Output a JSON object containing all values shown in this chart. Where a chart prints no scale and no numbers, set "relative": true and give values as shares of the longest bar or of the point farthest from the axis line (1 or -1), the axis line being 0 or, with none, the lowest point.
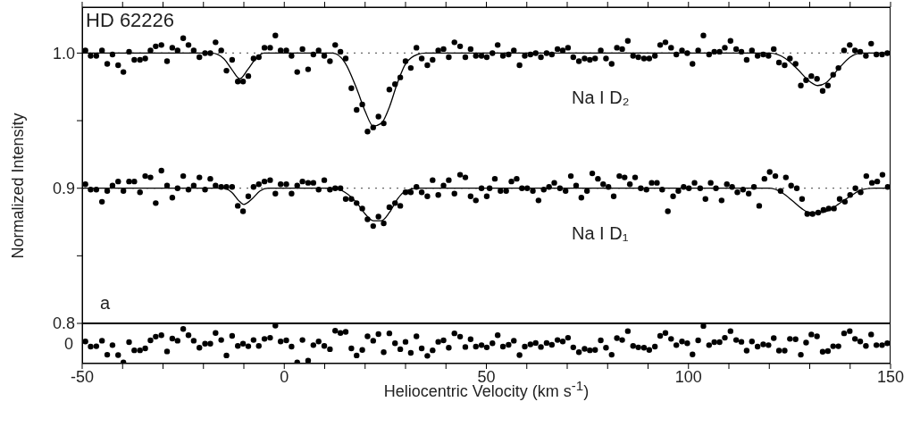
{
  "chart_data": [
    {
      "type": "scatter",
      "ylabel": "Normalized Intensity",
      "annotations": [
        "HD 62226",
        "Na I D₂",
        "Na I D₁",
        "a"
      ],
      "xlim": [
        -50,
        150
      ],
      "xticks": [
        -50,
        {
          "value": -40,
          "label": null
        },
        {
          "value": -30,
          "label": null
        },
        {
          "value": -20,
          "label": null
        },
        {
          "value": -10,
          "label": null
        },
        0,
        {
          "value": 10,
          "label": null
        },
        {
          "value": 20,
          "label": null
        },
        {
          "value": 30,
          "label": null
        },
        {
          "value": 40,
          "label": null
        },
        50,
        {
          "value": 60,
          "label": null
        },
        {
          "value": 70,
          "label": null
        },
        {
          "value": 80,
          "label": null
        },
        {
          "value": 90,
          "label": null
        },
        100,
        {
          "value": 110,
          "label": null
        },
        {
          "value": 120,
          "label": null
        },
        {
          "value": 130,
          "label": null
        },
        {
          "value": 140,
          "label": null
        },
        150
      ],
      "ylim": [
        0.8,
        1.034
      ],
      "yticks": [
        {
          "value": 0.8,
          "label": "0.8"
        },
        {
          "value": 0.85,
          "label": null
        },
        {
          "value": 0.9,
          "label": "0.9"
        },
        {
          "value": 0.95,
          "label": null
        },
        {
          "value": 1,
          "label": "1.0"
        }
      ],
      "tick_labels": "y",
      "ref_lines": [
        {
          "axis": "y",
          "value": 1,
          "line_style": "dotted",
          "color": "#666666"
        },
        {
          "axis": "y",
          "value": 0.9,
          "line_style": "dotted",
          "color": "#666666"
        }
      ],
      "series": [
        {
          "type": "scatter",
          "marker": "circle",
          "color": "#000000",
          "x": [
            -49.2,
            -47.9,
            -46.5,
            -45.1,
            -43.8,
            -42.5,
            -41.1,
            -39.8,
            -38.4,
            -37.1,
            -35.7,
            -34.4,
            -33.1,
            -31.8,
            -30.4,
            -29.0,
            -27.7,
            -26.4,
            -25.0,
            -23.7,
            -22.4,
            -21.0,
            -19.6,
            -18.3,
            -17.0,
            -15.6,
            -14.3,
            -12.9,
            -11.5,
            -10.2,
            -8.9,
            -7.6,
            -6.3,
            -4.9,
            -3.5,
            -2.2,
            -0.9,
            0.5,
            1.8,
            3.2,
            4.5,
            5.9,
            7.2,
            8.5,
            9.9,
            11.3,
            12.6,
            13.9,
            15.2,
            16.6,
            17.9,
            19.3,
            20.6,
            22.0,
            23.3,
            24.6,
            26.0,
            27.4,
            28.7,
            30.0,
            31.3,
            32.7,
            34.0,
            35.4,
            36.7,
            38.1,
            39.4,
            40.7,
            42.1,
            43.5,
            44.8,
            46.1,
            47.4,
            48.8,
            50.1,
            51.5,
            52.8,
            54.1,
            55.5,
            56.8,
            58.2,
            59.5,
            60.9,
            62.2,
            63.5,
            64.9,
            66.2,
            67.6,
            68.9,
            70.2,
            71.5,
            72.9,
            74.3,
            75.6,
            76.9,
            78.3,
            79.6,
            81.0,
            82.3,
            83.6,
            85.0,
            86.3,
            87.6,
            89.0,
            90.3,
            91.7,
            93.0,
            94.3,
            95.7,
            97.0,
            98.4,
            99.7,
            101.0,
            102.4,
            103.7,
            105.1,
            106.4,
            107.7,
            109.0,
            110.4,
            111.8,
            113.1,
            114.4,
            115.7,
            117.1,
            118.5,
            119.8,
            121.1,
            122.4,
            123.8,
            125.1,
            126.5,
            127.8,
            129.1,
            130.4,
            131.8,
            133.2,
            134.5,
            135.8,
            137.1,
            138.5,
            139.9,
            141.2,
            142.5,
            143.9,
            145.2,
            146.5,
            147.9,
            149.2
          ],
          "values": [
            1.002,
            0.998,
            0.998,
            1.002,
            0.992,
            0.999,
            0.991,
            0.986,
            1.001,
            0.995,
            0.995,
            0.996,
            1.002,
            1.005,
            1.006,
            0.994,
            1.004,
            1.002,
            1.011,
            1.006,
            1.002,
            0.997,
            1.0,
            1.0,
            1.008,
            1.002,
            0.987,
            0.995,
            0.979,
            0.979,
            0.983,
            0.996,
            0.997,
            1.004,
            1.004,
            1.013,
            1.002,
            1.002,
            0.998,
            0.986,
            1.003,
            0.988,
            0.999,
            1.002,
            0.998,
            0.994,
            1.006,
            1.001,
            0.996,
            0.974,
            0.958,
            0.962,
            0.942,
            0.945,
            0.953,
            0.948,
            0.973,
            0.977,
            0.982,
            0.994,
            0.989,
            1.004,
            0.996,
            0.991,
            0.995,
            1.002,
            1.003,
            0.997,
            1.008,
            1.005,
            0.997,
            1.003,
            0.998,
            0.998,
            0.997,
            1.0,
            1.006,
            0.998,
            0.999,
            1.002,
            0.991,
            0.998,
            0.999,
            1.0,
            0.997,
            1.0,
            0.999,
            1.003,
            1.002,
            1.004,
            0.997,
            0.994,
            0.996,
            0.995,
            0.996,
            1.002,
            0.996,
            0.992,
            1.004,
            1.003,
            1.009,
            0.998,
            0.997,
            0.996,
            0.996,
            0.998,
            1.006,
            1.008,
            1.004,
            0.999,
            1.002,
            1.0,
            0.992,
            1.002,
            1.013,
            0.999,
            1.001,
            1.001,
            1.004,
            1.009,
            1.003,
            1.001,
            0.995,
            1.002,
            0.998,
            0.999,
            0.998,
            1.003,
            0.993,
            0.991,
            0.996,
            0.992,
            0.976,
            0.98,
            0.983,
            0.981,
            0.972,
            0.976,
            0.984,
            0.989,
            1.002,
            1.006,
            1.002,
            1.001,
            0.998,
            1.007,
            0.999,
            0.999,
            1.0
          ]
        },
        {
          "type": "line",
          "marker": "none",
          "color": "#000000",
          "x": [
            -50,
            -18,
            -15,
            -13,
            -11,
            -9,
            -7,
            -5,
            12,
            15,
            18,
            20,
            22,
            24,
            26,
            28,
            30,
            33,
            35,
            120,
            124,
            127,
            130,
            132,
            134,
            137,
            140,
            143,
            150
          ],
          "values": [
            1,
            1,
            0.996,
            0.988,
            0.981,
            0.988,
            0.996,
            1,
            1,
            0.993,
            0.973,
            0.957,
            0.946,
            0.948,
            0.96,
            0.978,
            0.992,
            0.999,
            1,
            1,
            0.996,
            0.988,
            0.979,
            0.976,
            0.978,
            0.988,
            0.997,
            1,
            1
          ]
        },
        {
          "type": "scatter",
          "marker": "circle",
          "color": "#000000",
          "x": [
            -49.2,
            -47.9,
            -46.5,
            -45.1,
            -43.8,
            -42.5,
            -41.1,
            -39.8,
            -38.4,
            -37.1,
            -35.7,
            -34.4,
            -33.1,
            -31.8,
            -30.4,
            -29.0,
            -27.7,
            -26.4,
            -25.0,
            -23.7,
            -22.4,
            -21.0,
            -19.6,
            -18.3,
            -17.0,
            -15.6,
            -14.3,
            -12.9,
            -11.5,
            -10.2,
            -8.9,
            -7.6,
            -6.3,
            -4.9,
            -3.5,
            -2.2,
            -0.9,
            0.5,
            1.8,
            3.2,
            4.5,
            5.9,
            7.2,
            8.5,
            9.9,
            11.3,
            12.6,
            13.9,
            15.2,
            16.6,
            17.9,
            19.3,
            20.6,
            22.0,
            23.3,
            24.6,
            26.0,
            27.4,
            28.7,
            30.0,
            31.3,
            32.7,
            34.0,
            35.4,
            36.7,
            38.1,
            39.4,
            40.7,
            42.1,
            43.5,
            44.8,
            46.1,
            47.4,
            48.8,
            50.1,
            50.8,
            52.1,
            53.5,
            54.9,
            56.2,
            57.5,
            58.8,
            60.1,
            61.5,
            62.9,
            64.2,
            65.5,
            66.8,
            68.2,
            69.6,
            70.9,
            72.2,
            73.5,
            74.9,
            76.2,
            77.6,
            78.9,
            80.2,
            81.5,
            82.9,
            84.2,
            85.5,
            86.8,
            88.2,
            89.6,
            90.9,
            92.2,
            93.5,
            94.9,
            96.2,
            97.5,
            98.8,
            100.1,
            101.5,
            102.9,
            104.2,
            105.5,
            106.8,
            108.2,
            109.5,
            110.8,
            112.1,
            113.5,
            114.9,
            116.2,
            117.5,
            118.8,
            120.1,
            121.5,
            122.8,
            124.1,
            125.4,
            126.8,
            128.1,
            129.4,
            130.7,
            132.1,
            133.4,
            134.7,
            136.0,
            137.4,
            138.7,
            140.0,
            141.3,
            142.6,
            144.0,
            145.4,
            146.7,
            148.0,
            149.3
          ],
          "values": [
            0.903,
            0.899,
            0.899,
            0.89,
            0.898,
            0.902,
            0.905,
            0.898,
            0.905,
            0.905,
            0.897,
            0.909,
            0.908,
            0.889,
            0.913,
            0.902,
            0.893,
            0.9,
            0.909,
            0.899,
            0.902,
            0.908,
            0.899,
            0.907,
            0.902,
            0.901,
            0.901,
            0.901,
            0.887,
            0.883,
            0.894,
            0.901,
            0.903,
            0.905,
            0.906,
            0.896,
            0.903,
            0.903,
            0.896,
            0.902,
            0.905,
            0.904,
            0.904,
            0.899,
            0.906,
            0.899,
            0.9,
            0.9,
            0.892,
            0.892,
            0.889,
            0.885,
            0.877,
            0.872,
            0.879,
            0.874,
            0.886,
            0.889,
            0.887,
            0.897,
            0.897,
            0.901,
            0.897,
            0.894,
            0.906,
            0.895,
            0.902,
            0.906,
            0.896,
            0.91,
            0.908,
            0.894,
            0.891,
            0.9,
            0.894,
            0.9,
            0.907,
            0.898,
            0.898,
            0.905,
            0.907,
            0.9,
            0.9,
            0.898,
            0.891,
            0.899,
            0.901,
            0.904,
            0.9,
            0.898,
            0.909,
            0.902,
            0.893,
            0.898,
            0.911,
            0.907,
            0.903,
            0.901,
            0.894,
            0.909,
            0.908,
            0.903,
            0.908,
            0.9,
            0.899,
            0.904,
            0.904,
            0.899,
            0.883,
            0.894,
            0.898,
            0.901,
            0.9,
            0.904,
            0.9,
            0.892,
            0.904,
            0.9,
            0.891,
            0.903,
            0.901,
            0.897,
            0.899,
            0.896,
            0.901,
            0.887,
            0.907,
            0.912,
            0.909,
            0.898,
            0.908,
            0.902,
            0.9,
            0.892,
            0.881,
            0.881,
            0.882,
            0.884,
            0.885,
            0.885,
            0.892,
            0.89,
            0.895,
            0.9,
            0.897,
            0.909,
            0.904,
            0.905,
            0.91,
            0.901
          ]
        },
        {
          "type": "line",
          "marker": "none",
          "color": "#000000",
          "x": [
            -50,
            -15,
            -13,
            -11,
            -10,
            -8,
            -6,
            -4,
            12,
            15,
            18,
            20,
            22,
            24,
            26,
            28,
            30,
            33,
            120,
            123,
            126,
            128,
            130,
            133,
            135,
            137,
            140,
            143,
            146,
            150
          ],
          "values": [
            0.9,
            0.9,
            0.897,
            0.89,
            0.888,
            0.892,
            0.898,
            0.9,
            0.9,
            0.897,
            0.889,
            0.881,
            0.876,
            0.876,
            0.882,
            0.892,
            0.898,
            0.9,
            0.9,
            0.897,
            0.89,
            0.885,
            0.882,
            0.882,
            0.884,
            0.888,
            0.894,
            0.899,
            0.9,
            0.9
          ]
        }
      ]
    },
    {
      "type": "scatter",
      "xlabel": "Heliocentric Velocity (km s$^{-1}$)",
      "xlim": [
        -50,
        150
      ],
      "xticks": [
        -50,
        {
          "value": -40,
          "label": null
        },
        {
          "value": -30,
          "label": null
        },
        {
          "value": -20,
          "label": null
        },
        {
          "value": -10,
          "label": null
        },
        0,
        {
          "value": 10,
          "label": null
        },
        {
          "value": 20,
          "label": null
        },
        {
          "value": 30,
          "label": null
        },
        {
          "value": 40,
          "label": null
        },
        50,
        {
          "value": 60,
          "label": null
        },
        {
          "value": 70,
          "label": null
        },
        {
          "value": 80,
          "label": null
        },
        {
          "value": 90,
          "label": null
        },
        100,
        {
          "value": 110,
          "label": null
        },
        {
          "value": 120,
          "label": null
        },
        {
          "value": 130,
          "label": null
        },
        {
          "value": 140,
          "label": null
        },
        150
      ],
      "relative": true,
      "annotations": [
        "0"
      ],
      "series": [
        {
          "type": "scatter",
          "marker": "circle",
          "color": "#000000",
          "x": [
            -49.2,
            -47.9,
            -46.5,
            -45.1,
            -43.8,
            -42.5,
            -41.1,
            -39.8,
            -38.4,
            -37.1,
            -35.7,
            -34.4,
            -33.1,
            -31.8,
            -30.4,
            -29.0,
            -27.7,
            -26.4,
            -25.0,
            -23.7,
            -22.4,
            -21.0,
            -19.6,
            -18.3,
            -17.0,
            -15.6,
            -14.3,
            -12.9,
            -11.5,
            -10.2,
            -8.9,
            -7.6,
            -6.3,
            -4.9,
            -3.5,
            -2.2,
            -0.9,
            0.5,
            1.8,
            3.2,
            4.5,
            5.9,
            7.2,
            8.5,
            9.9,
            11.3,
            12.6,
            13.9,
            15.2,
            16.6,
            17.9,
            19.3,
            20.6,
            22.0,
            23.3,
            24.6,
            26.0,
            27.4,
            28.7,
            30.0,
            31.3,
            32.7,
            34.0,
            35.4,
            36.7,
            38.1,
            39.4,
            40.7,
            42.1,
            43.5,
            44.8,
            46.1,
            47.4,
            48.8,
            50.1,
            51.5,
            52.8,
            54.1,
            55.5,
            56.8,
            58.2,
            59.5,
            60.9,
            62.2,
            63.5,
            64.9,
            66.2,
            67.6,
            68.9,
            70.2,
            71.5,
            72.9,
            74.3,
            75.6,
            76.9,
            78.3,
            79.6,
            81.0,
            82.3,
            83.6,
            85.0,
            86.3,
            87.6,
            89.0,
            90.3,
            91.7,
            93.0,
            94.3,
            95.7,
            97.0,
            98.4,
            99.7,
            101.0,
            102.4,
            103.7,
            105.1,
            106.4,
            107.7,
            109.0,
            110.4,
            111.8,
            113.1,
            114.4,
            115.7,
            117.1,
            118.5,
            119.8,
            121.1,
            122.4,
            123.8,
            125.1,
            126.5,
            127.8,
            129.1,
            130.4,
            131.8,
            133.2,
            134.5,
            135.8,
            137.1,
            138.5,
            139.9,
            141.2,
            142.5,
            143.9,
            145.2,
            146.5,
            147.9,
            149.2
          ],
          "values": [
            0.57,
            0.43,
            0.44,
            0.59,
            0.21,
            0.47,
            0.2,
            0,
            0.55,
            0.33,
            0.33,
            0.38,
            0.6,
            0.7,
            0.74,
            0.3,
            0.65,
            0.59,
            0.91,
            0.74,
            0.59,
            0.4,
            0.51,
            0.51,
            0.8,
            0.61,
            0.19,
            0.72,
            0.45,
            0.51,
            0.44,
            0.61,
            0.45,
            0.64,
            0.67,
            1,
            0.57,
            0.6,
            0.43,
            0,
            0.61,
            0.05,
            0.47,
            0.57,
            0.45,
            0.36,
            0.86,
            0.8,
            0.83,
            0.38,
            0.19,
            0.34,
            0.71,
            0.59,
            0.77,
            0.28,
            0.79,
            0.52,
            0.36,
            0.56,
            0.26,
            0.71,
            0.38,
            0.18,
            0.33,
            0.56,
            0.6,
            0.4,
            0.79,
            0.7,
            0.42,
            0.63,
            0.43,
            0.47,
            0.41,
            0.52,
            0.74,
            0.43,
            0.48,
            0.59,
            0.2,
            0.43,
            0.49,
            0.53,
            0.42,
            0.53,
            0.48,
            0.61,
            0.57,
            0.67,
            0.41,
            0.28,
            0.37,
            0.33,
            0.34,
            0.6,
            0.4,
            0.21,
            0.66,
            0.61,
            0.85,
            0.45,
            0.41,
            0.4,
            0.34,
            0.43,
            0.72,
            0.8,
            0.64,
            0.47,
            0.57,
            0.52,
            0.22,
            0.6,
            0.99,
            0.47,
            0.55,
            0.55,
            0.67,
            0.85,
            0.61,
            0.56,
            0.32,
            0.57,
            0.43,
            0.49,
            0.47,
            0.66,
            0.32,
            0.32,
            0.64,
            0.63,
            0.21,
            0.54,
            0.76,
            0.71,
            0.29,
            0.31,
            0.44,
            0.44,
            0.79,
            0.85,
            0.64,
            0.57,
            0.45,
            0.76,
            0.47,
            0.47,
            0.52
          ]
        }
      ]
    }
  ]
}
